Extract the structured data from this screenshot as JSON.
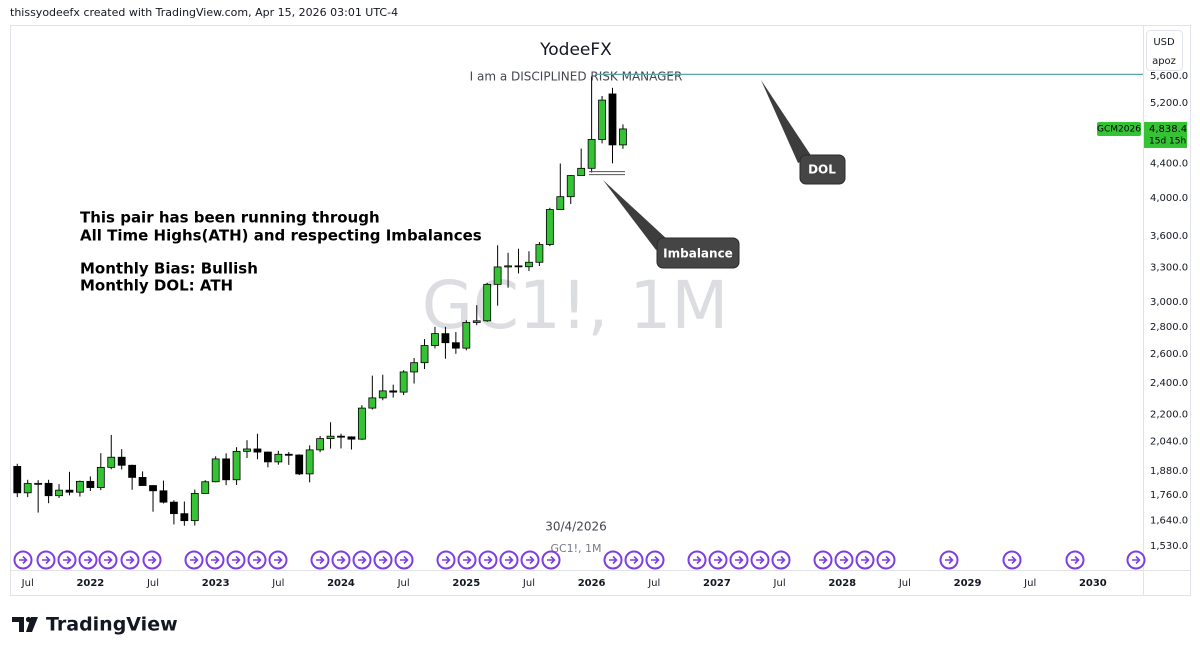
{
  "header": {
    "byline": "thissyodeefx created with TradingView.com, Apr 15, 2026 03:01 UTC-4"
  },
  "chart_data": {
    "type": "candlestick",
    "title": "YodeeFX",
    "subtitle": "I am a DISCIPLINED RISK MANAGER",
    "watermark": "GC1!, 1M",
    "symbol": "GCM2026",
    "currency": "USD",
    "scale_label": "apoz",
    "log_scale": true,
    "up_color": "#35c235",
    "down_color": "#000000",
    "line_color": "#5aa7a7",
    "open": [
      1905,
      1771,
      1817,
      1818,
      1757,
      1784,
      1774,
      1828,
      1797,
      1900,
      1954,
      1911,
      1848,
      1807,
      1781,
      1726,
      1672,
      1640,
      1768,
      1826,
      1945,
      1836,
      1986,
      1999,
      1982,
      1929,
      1970,
      1966,
      1866,
      1994,
      2057,
      2071,
      2067,
      2054,
      2238,
      2302,
      2347,
      2339,
      2473,
      2537,
      2660,
      2749,
      2681,
      2641,
      2835,
      2848,
      3150,
      3305,
      3315,
      3307,
      3348,
      3516,
      3873,
      4013,
      4254,
      4340,
      4700,
      5330,
      4630
    ],
    "high": [
      1919,
      1836,
      1834,
      1836,
      1814,
      1877,
      1832,
      1853,
      1976,
      2078,
      1998,
      1914,
      1879,
      1808,
      1832,
      1735,
      1729,
      1787,
      1834,
      1959,
      1975,
      2009,
      2048,
      2085,
      1985,
      1989,
      1983,
      1970,
      2019,
      2072,
      2152,
      2085,
      2070,
      2256,
      2448,
      2454,
      2388,
      2485,
      2570,
      2708,
      2801,
      2801,
      2761,
      2853,
      2974,
      3163,
      3509,
      3437,
      3476,
      3451,
      3540,
      3892,
      4398,
      4260,
      4584,
      5595,
      5300,
      5420,
      4900
    ],
    "low": [
      1750,
      1750,
      1677,
      1721,
      1746,
      1759,
      1753,
      1780,
      1784,
      1890,
      1889,
      1786,
      1805,
      1681,
      1720,
      1623,
      1617,
      1618,
      1766,
      1823,
      1809,
      1810,
      1950,
      1943,
      1900,
      1914,
      1913,
      1860,
      1823,
      1981,
      2001,
      2002,
      1996,
      2050,
      2229,
      2287,
      2304,
      2320,
      2395,
      2493,
      2639,
      2565,
      2600,
      2625,
      2814,
      2840,
      2970,
      3121,
      3246,
      3268,
      3314,
      3500,
      3870,
      3932,
      4250,
      4290,
      4650,
      4400,
      4580
    ],
    "close": [
      1771,
      1817,
      1818,
      1757,
      1784,
      1774,
      1828,
      1797,
      1900,
      1954,
      1911,
      1848,
      1807,
      1781,
      1726,
      1672,
      1640,
      1768,
      1826,
      1945,
      1836,
      1986,
      1999,
      1982,
      1929,
      1970,
      1966,
      1866,
      1994,
      2057,
      2071,
      2067,
      2054,
      2238,
      2302,
      2347,
      2339,
      2473,
      2537,
      2660,
      2749,
      2681,
      2641,
      2835,
      2848,
      3150,
      3305,
      3315,
      3307,
      3348,
      3516,
      3873,
      4013,
      4254,
      4340,
      4700,
      5240,
      4630,
      4838.4
    ],
    "xlim": [
      -0.6,
      107.8
    ],
    "xticks": [
      {
        "value": 1,
        "label": "Jul"
      },
      {
        "value": 7,
        "label": "2022"
      },
      {
        "value": 13,
        "label": "Jul"
      },
      {
        "value": 19,
        "label": "2023"
      },
      {
        "value": 25,
        "label": "Jul"
      },
      {
        "value": 31,
        "label": "2024"
      },
      {
        "value": 37,
        "label": "Jul"
      },
      {
        "value": 43,
        "label": "2025"
      },
      {
        "value": 49,
        "label": "Jul"
      },
      {
        "value": 55,
        "label": "2026"
      },
      {
        "value": 61,
        "label": "Jul"
      },
      {
        "value": 67,
        "label": "2027"
      },
      {
        "value": 73,
        "label": "Jul"
      },
      {
        "value": 79,
        "label": "2028"
      },
      {
        "value": 85,
        "label": "Jul"
      },
      {
        "value": 91,
        "label": "2029"
      },
      {
        "value": 97,
        "label": "Jul"
      },
      {
        "value": 103,
        "label": "2030"
      }
    ],
    "ylim": [
      1431,
      6430
    ],
    "yticks": [
      {
        "value": 5600,
        "label": "5,600.0"
      },
      {
        "value": 5200,
        "label": "5,200.0"
      },
      {
        "value": 4400,
        "label": "4,400.0"
      },
      {
        "value": 4000,
        "label": "4,000.0"
      },
      {
        "value": 3600,
        "label": "3,600.0"
      },
      {
        "value": 3300,
        "label": "3,300.0"
      },
      {
        "value": 3000,
        "label": "3,000.0"
      },
      {
        "value": 2800,
        "label": "2,800.0"
      },
      {
        "value": 2600,
        "label": "2,600.0"
      },
      {
        "value": 2400,
        "label": "2,400.0"
      },
      {
        "value": 2200,
        "label": "2,200.0"
      },
      {
        "value": 2040,
        "label": "2,040.0"
      },
      {
        "value": 1880,
        "label": "1,880.0"
      },
      {
        "value": 1760,
        "label": "1,760.0"
      },
      {
        "value": 1640,
        "label": "1,640.0"
      },
      {
        "value": 1530,
        "label": "1,530.0"
      }
    ],
    "last_price": {
      "value": 4838.4,
      "label": "4,838.4"
    },
    "countdown": "15d 15h",
    "horizontal_line": 5626,
    "imbalance_lines": [
      4265,
      4300
    ],
    "notes": [
      "This pair has been running through",
      "All Time Highs(ATH) and respecting Imbalances",
      "Monthly Bias: Bullish",
      "Monthly DOL: ATH"
    ],
    "callouts": [
      "Imbalance",
      "DOL"
    ],
    "date_label": "30/4/2026",
    "crosshair_label": "GC1!, 1M"
  },
  "footer": {
    "brand": "TradingView"
  }
}
